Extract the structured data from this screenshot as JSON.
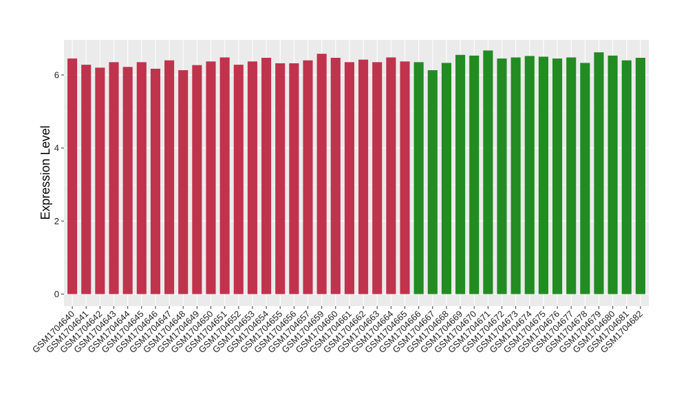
{
  "chart_data": {
    "type": "bar",
    "y_label": "Expression Level",
    "categories": [
      "GSM1704640",
      "GSM1704641",
      "GSM1704642",
      "GSM1704643",
      "GSM1704644",
      "GSM1704645",
      "GSM1704646",
      "GSM1704647",
      "GSM1704648",
      "GSM1704649",
      "GSM1704650",
      "GSM1704651",
      "GSM1704652",
      "GSM1704653",
      "GSM1704654",
      "GSM1704655",
      "GSM1704656",
      "GSM1704657",
      "GSM1704659",
      "GSM1704660",
      "GSM1704661",
      "GSM1704662",
      "GSM1704663",
      "GSM1704664",
      "GSM1704665",
      "GSM1704666",
      "GSM1704667",
      "GSM1704668",
      "GSM1704669",
      "GSM1704670",
      "GSM1704671",
      "GSM1704672",
      "GSM1704673",
      "GSM1704674",
      "GSM1704675",
      "GSM1704676",
      "GSM1704677",
      "GSM1704678",
      "GSM1704679",
      "GSM1704680",
      "GSM1704681",
      "GSM1704682"
    ],
    "values": [
      6.45,
      6.28,
      6.2,
      6.35,
      6.22,
      6.35,
      6.17,
      6.4,
      6.13,
      6.27,
      6.37,
      6.48,
      6.28,
      6.37,
      6.47,
      6.32,
      6.32,
      6.4,
      6.58,
      6.47,
      6.35,
      6.42,
      6.35,
      6.48,
      6.37,
      6.35,
      6.13,
      6.33,
      6.55,
      6.53,
      6.67,
      6.45,
      6.48,
      6.52,
      6.5,
      6.45,
      6.48,
      6.33,
      6.62,
      6.53,
      6.4,
      6.47
    ],
    "colors": [
      "#c0334d",
      "#c0334d",
      "#c0334d",
      "#c0334d",
      "#c0334d",
      "#c0334d",
      "#c0334d",
      "#c0334d",
      "#c0334d",
      "#c0334d",
      "#c0334d",
      "#c0334d",
      "#c0334d",
      "#c0334d",
      "#c0334d",
      "#c0334d",
      "#c0334d",
      "#c0334d",
      "#c0334d",
      "#c0334d",
      "#c0334d",
      "#c0334d",
      "#c0334d",
      "#c0334d",
      "#c0334d",
      "#228b22",
      "#228b22",
      "#228b22",
      "#228b22",
      "#228b22",
      "#228b22",
      "#228b22",
      "#228b22",
      "#228b22",
      "#228b22",
      "#228b22",
      "#228b22",
      "#228b22",
      "#228b22",
      "#228b22",
      "#228b22",
      "#228b22"
    ],
    "ylim": [
      -0.33,
      6.96
    ],
    "yticks": [
      0,
      2,
      4,
      6
    ],
    "grid": true
  }
}
